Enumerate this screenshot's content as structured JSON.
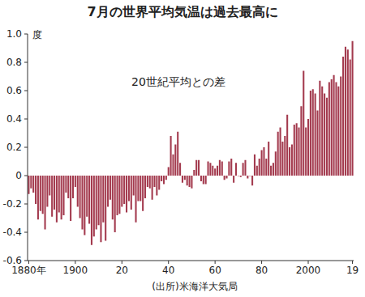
{
  "chart_data": {
    "type": "bar",
    "title": "7月の世界平均気温は過去最高に",
    "ylabel": "度",
    "annotations": [
      "20世紀平均との差"
    ],
    "source": "(出所)米海洋大気局",
    "color": "#a33a4e",
    "grid": false,
    "categories": [
      "1880年",
      null,
      null,
      null,
      null,
      null,
      null,
      null,
      null,
      null,
      null,
      null,
      null,
      null,
      null,
      null,
      null,
      null,
      null,
      null,
      "1900",
      null,
      null,
      null,
      null,
      null,
      null,
      null,
      null,
      null,
      null,
      null,
      null,
      null,
      null,
      null,
      null,
      null,
      null,
      null,
      "20",
      null,
      null,
      null,
      null,
      null,
      null,
      null,
      null,
      null,
      null,
      null,
      null,
      null,
      null,
      null,
      null,
      null,
      null,
      null,
      "40",
      null,
      null,
      null,
      null,
      null,
      null,
      null,
      null,
      null,
      null,
      null,
      null,
      null,
      null,
      null,
      null,
      null,
      null,
      null,
      "60",
      null,
      null,
      null,
      null,
      null,
      null,
      null,
      null,
      null,
      null,
      null,
      null,
      null,
      null,
      null,
      null,
      null,
      null,
      null,
      "80",
      null,
      null,
      null,
      null,
      null,
      null,
      null,
      null,
      null,
      null,
      null,
      null,
      null,
      null,
      null,
      null,
      null,
      null,
      null,
      "2000",
      null,
      null,
      null,
      null,
      null,
      null,
      null,
      null,
      null,
      null,
      null,
      null,
      null,
      null,
      null,
      null,
      null,
      null,
      "19"
    ],
    "values": [
      -0.13,
      -0.09,
      -0.12,
      -0.2,
      -0.31,
      -0.25,
      -0.27,
      -0.38,
      -0.22,
      -0.14,
      -0.29,
      -0.24,
      -0.33,
      -0.26,
      -0.31,
      -0.28,
      -0.12,
      -0.16,
      -0.32,
      -0.16,
      -0.08,
      -0.22,
      -0.3,
      -0.38,
      -0.42,
      -0.29,
      -0.34,
      -0.49,
      -0.43,
      -0.38,
      -0.35,
      -0.47,
      -0.33,
      -0.46,
      -0.22,
      -0.17,
      -0.31,
      -0.4,
      -0.28,
      -0.27,
      -0.22,
      -0.2,
      -0.26,
      -0.18,
      -0.24,
      -0.14,
      -0.33,
      -0.18,
      -0.18,
      -0.25,
      -0.16,
      -0.08,
      -0.09,
      -0.17,
      -0.08,
      -0.14,
      -0.1,
      -0.04,
      -0.06,
      -0.03,
      0.06,
      0.28,
      0.15,
      0.22,
      0.31,
      0.09,
      -0.05,
      -0.03,
      -0.07,
      -0.08,
      -0.09,
      0.04,
      0.11,
      0.11,
      -0.04,
      -0.06,
      -0.06,
      0.1,
      0.09,
      0.07,
      0.05,
      0.07,
      0.11,
      0.1,
      -0.03,
      -0.02,
      0.1,
      0.12,
      -0.05,
      0.09,
      0.0,
      -0.01,
      0.09,
      0.11,
      -0.02,
      0.0,
      -0.07,
      0.15,
      0.07,
      0.12,
      0.18,
      0.2,
      0.12,
      0.24,
      0.07,
      0.09,
      0.17,
      0.31,
      0.34,
      0.24,
      0.28,
      0.43,
      0.2,
      0.22,
      0.36,
      0.37,
      0.34,
      0.49,
      0.74,
      0.34,
      0.4,
      0.6,
      0.61,
      0.58,
      0.46,
      0.67,
      0.63,
      0.58,
      0.55,
      0.66,
      0.68,
      0.71,
      0.66,
      0.63,
      0.7,
      0.84,
      0.91,
      0.89,
      0.82,
      0.95
    ],
    "ylim": [
      -0.6,
      1.0
    ],
    "yticks": [
      {
        "value": 1.0,
        "label": "1.0"
      },
      0.8,
      0.6,
      0.4,
      0.2,
      0,
      -0.2,
      -0.4,
      -0.6
    ]
  }
}
